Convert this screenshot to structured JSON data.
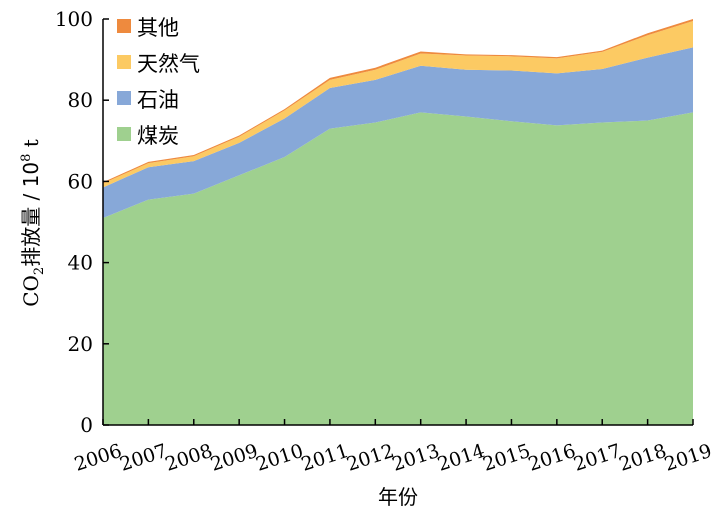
{
  "chart_data": {
    "type": "area",
    "stacked": true,
    "x": [
      "2006",
      "2007",
      "2008",
      "2009",
      "2010",
      "2011",
      "2012",
      "2013",
      "2014",
      "2015",
      "2016",
      "2017",
      "2018",
      "2019"
    ],
    "series": [
      {
        "name": "煤炭",
        "color": "#9fd08f",
        "values": [
          51.0,
          55.5,
          57.0,
          61.5,
          66.0,
          73.0,
          74.5,
          77.0,
          76.0,
          74.8,
          73.8,
          74.5,
          75.0,
          77.0
        ]
      },
      {
        "name": "石油",
        "color": "#87a8d8",
        "values": [
          7.5,
          8.0,
          8.0,
          8.0,
          9.5,
          10.0,
          10.5,
          11.5,
          11.5,
          12.5,
          12.8,
          13.2,
          15.5,
          16.0
        ]
      },
      {
        "name": "天然气",
        "color": "#fcca63",
        "values": [
          1.0,
          1.0,
          1.2,
          1.5,
          2.0,
          2.0,
          2.5,
          3.0,
          3.5,
          3.5,
          3.7,
          4.2,
          5.5,
          6.5
        ]
      },
      {
        "name": "其他",
        "color": "#ee8a3e",
        "values": [
          0.3,
          0.3,
          0.3,
          0.3,
          0.3,
          0.5,
          0.5,
          0.5,
          0.3,
          0.3,
          0.3,
          0.3,
          0.5,
          0.5
        ]
      }
    ],
    "legend_order": [
      "其他",
      "天然气",
      "石油",
      "煤炭"
    ],
    "xlabel": "年份",
    "ylabel": "CO2排放量 / 10⁸ t",
    "ylim": [
      0,
      100
    ],
    "yticks": [
      0,
      20,
      40,
      60,
      80,
      100
    ],
    "grid": false,
    "legend_position": "top-left"
  }
}
